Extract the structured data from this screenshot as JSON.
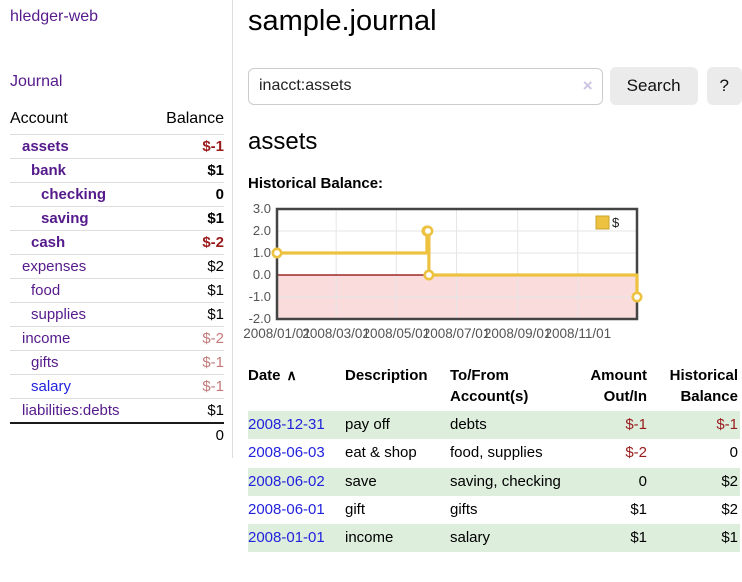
{
  "app": {
    "brand": "hledger-web",
    "nav_journal": "Journal"
  },
  "sidebar": {
    "header": {
      "account": "Account",
      "balance": "Balance"
    },
    "accounts": [
      {
        "name": "assets",
        "balance": "$-1",
        "level": 1
      },
      {
        "name": "bank",
        "balance": "$1",
        "level": 2
      },
      {
        "name": "checking",
        "balance": "0",
        "level": 3
      },
      {
        "name": "saving",
        "balance": "$1",
        "level": 3
      },
      {
        "name": "cash",
        "balance": "$-2",
        "level": 2
      },
      {
        "name": "expenses",
        "balance": "$2",
        "level": 1
      },
      {
        "name": "food",
        "balance": "$1",
        "level": 2
      },
      {
        "name": "supplies",
        "balance": "$1",
        "level": 2
      },
      {
        "name": "income",
        "balance": "$-2",
        "level": 1
      },
      {
        "name": "gifts",
        "balance": "$-1",
        "level": 2
      },
      {
        "name": "salary",
        "balance": "$-1",
        "level": 2
      },
      {
        "name": "liabilities:debts",
        "balance": "$1",
        "level": 1
      }
    ],
    "total": "0"
  },
  "main": {
    "title": "sample.journal",
    "search": {
      "value": "inacct:assets",
      "clear_icon": "×",
      "button": "Search",
      "help_button": "?"
    },
    "account_heading": "assets",
    "chart_label": "Historical Balance:"
  },
  "chart_data": {
    "type": "line",
    "style": "step-after",
    "title": "Historical Balance:",
    "series": [
      {
        "name": "$",
        "color": "#edc240",
        "points": [
          {
            "date": "2008-01-01",
            "value": 1
          },
          {
            "date": "2008-06-01",
            "value": 2
          },
          {
            "date": "2008-06-02",
            "value": 2
          },
          {
            "date": "2008-06-03",
            "value": 0
          },
          {
            "date": "2008-12-31",
            "value": -1
          }
        ]
      }
    ],
    "x_range": [
      "2008-01-01",
      "2008-12-31"
    ],
    "x_ticks": [
      "2008/01/01",
      "2008/03/01",
      "2008/05/01",
      "2008/07/01",
      "2008/09/01",
      "2008/11/01"
    ],
    "y_range": [
      -2,
      3
    ],
    "y_ticks": [
      3.0,
      2.0,
      1.0,
      0.0,
      -1.0,
      -2.0
    ],
    "legend": {
      "label": "$",
      "position": "top-right"
    },
    "grid": true,
    "colors": {
      "line": "#edc240",
      "marker_fill": "#ffffff",
      "below_zero_fill": "#fadcdc",
      "zero_line": "#8b0000",
      "gridline": "#e6e6e6",
      "border": "#444444",
      "axis_text": "#545454"
    }
  },
  "register": {
    "columns": {
      "date": "Date",
      "description": "Description",
      "tofrom": "To/From Account(s)",
      "amount": "Amount Out/In",
      "balance": "Historical Balance"
    },
    "sort_icon": "∧",
    "rows": [
      {
        "date": "2008-12-31",
        "description": "pay off",
        "accounts": "debts",
        "amount": "$-1",
        "balance": "$-1"
      },
      {
        "date": "2008-06-03",
        "description": "eat & shop",
        "accounts": "food, supplies",
        "amount": "$-2",
        "balance": "0"
      },
      {
        "date": "2008-06-02",
        "description": "save",
        "accounts": "saving, checking",
        "amount": "0",
        "balance": "$2"
      },
      {
        "date": "2008-06-01",
        "description": "gift",
        "accounts": "gifts",
        "amount": "$1",
        "balance": "$2"
      },
      {
        "date": "2008-01-01",
        "description": "income",
        "accounts": "salary",
        "amount": "$1",
        "balance": "$1"
      }
    ]
  }
}
